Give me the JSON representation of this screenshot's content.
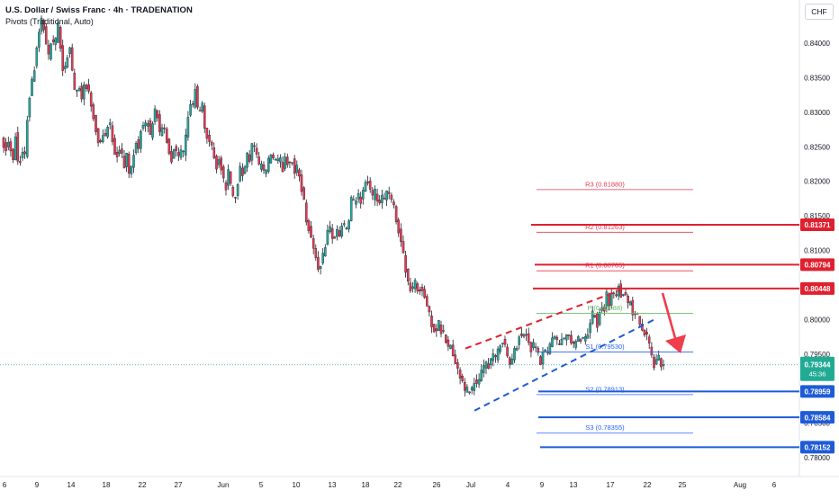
{
  "header": {
    "title": "U.S. Dollar / Swiss Franc · 4h · TRADENATION",
    "indicator": "Pivots (Traditional, Auto)"
  },
  "currency_button": "CHF",
  "colors": {
    "up": "#26a69a",
    "down": "#e53950",
    "red_line": "#e0202f",
    "blue_line": "#1e5bd8",
    "pivot_green": "#6abf6a",
    "arrow": "#ef3d4c",
    "price_badge": "#22ab94"
  },
  "chart_data": {
    "type": "candlestick",
    "ylim": [
      0.7795,
      0.8455
    ],
    "y_ticks": [
      "0.84000",
      "0.83500",
      "0.83000",
      "0.82500",
      "0.82000",
      "0.81500",
      "0.81000",
      "0.80500",
      "0.80000",
      "0.79500",
      "0.79000",
      "0.78500",
      "0.78000"
    ],
    "x_ticks": [
      "6",
      "9",
      "14",
      "18",
      "22",
      "27",
      "Jun",
      "5",
      "10",
      "13",
      "18",
      "22",
      "26",
      "Jul",
      "4",
      "9",
      "13",
      "17",
      "22",
      "25",
      "Aug",
      "6"
    ],
    "price_path": [
      [
        0.8255,
        0.8248,
        0.8262,
        0.8225,
        0.8272,
        0.8215,
        0.8248,
        0.823,
        0.83,
        0.8338,
        0.8356,
        0.8395,
        0.8422,
        0.844,
        0.84,
        0.8378,
        0.8412,
        0.8388,
        0.8428,
        0.8396,
        0.8352,
        0.8378,
        0.8398
      ],
      [
        0.8352,
        0.8322,
        0.8346,
        0.8318,
        0.8345,
        0.8336,
        0.8315,
        0.8294,
        0.827,
        0.825,
        0.8272,
        0.8265,
        0.8288,
        0.827,
        0.8242,
        0.8238,
        0.8255,
        0.8215,
        0.8238,
        0.8205,
        0.8232,
        0.8262,
        0.8248
      ],
      [
        0.8285,
        0.8274,
        0.829,
        0.8262,
        0.83,
        0.8308,
        0.8265,
        0.8282,
        0.827,
        0.8245,
        0.8232,
        0.8255,
        0.823,
        0.8242,
        0.8238,
        0.8272,
        0.8315,
        0.8305,
        0.834,
        0.8285,
        0.832,
        0.8278,
        0.8262
      ],
      [
        0.8255,
        0.8238,
        0.8222,
        0.8238,
        0.8205,
        0.819,
        0.8215,
        0.8182,
        0.817,
        0.8198,
        0.8225,
        0.8205,
        0.8238,
        0.8232,
        0.8255,
        0.8245,
        0.8218,
        0.8225,
        0.8208,
        0.8222,
        0.824,
        0.8232,
        0.8226
      ],
      [
        0.8232,
        0.8218,
        0.824,
        0.8222,
        0.8237,
        0.8212,
        0.822,
        0.8198,
        0.8175,
        0.8142,
        0.813,
        0.8108,
        0.809,
        0.8072,
        0.8085,
        0.8102,
        0.8125,
        0.8135,
        0.8112,
        0.8128,
        0.8122,
        0.814,
        0.8128
      ],
      [
        0.814,
        0.8175,
        0.8165,
        0.8182,
        0.8172,
        0.819,
        0.8205,
        0.819,
        0.8175,
        0.8185,
        0.8165,
        0.8175,
        0.8172,
        0.8188,
        0.8172,
        0.8165,
        0.814,
        0.8125,
        0.81,
        0.8075,
        0.805,
        0.804,
        0.8055
      ],
      [
        0.8042,
        0.8048,
        0.8038,
        0.8022,
        0.8005,
        0.799,
        0.7982,
        0.7995,
        0.798,
        0.7978,
        0.7958,
        0.7962,
        0.7945,
        0.793,
        0.792,
        0.7908,
        0.789,
        0.7902,
        0.7895,
        0.7914,
        0.7902,
        0.7918,
        0.793
      ],
      [
        0.7938,
        0.7932,
        0.7952,
        0.7942,
        0.7955,
        0.7975,
        0.7965,
        0.7945,
        0.7932,
        0.795,
        0.7962,
        0.798,
        0.7975,
        0.7982,
        0.7968,
        0.7955,
        0.7965,
        0.795,
        0.7935,
        0.7958,
        0.7945,
        0.7958,
        0.7974
      ],
      [
        0.7972,
        0.796,
        0.7975,
        0.7968,
        0.798,
        0.7972,
        0.796,
        0.7968,
        0.7975,
        0.7968,
        0.7972,
        0.7985,
        0.8005,
        0.8012,
        0.7992,
        0.8022,
        0.801,
        0.8038,
        0.802,
        0.8045,
        0.8028,
        0.8052,
        0.8032
      ],
      [
        0.8045,
        0.8018,
        0.8028,
        0.8005,
        0.8012,
        0.7995,
        0.7985,
        0.7978,
        0.7968,
        0.7945,
        0.7932,
        0.7948,
        0.7935,
        0.7934
      ]
    ]
  },
  "pivots": [
    {
      "label": "R3 (0.81880)",
      "value": 0.8188,
      "color": "#e53950"
    },
    {
      "label": "R2 (0.81263)",
      "value": 0.81263,
      "color": "#e53950"
    },
    {
      "label": "R1 (0.80705)",
      "value": 0.80705,
      "color": "#e53950"
    },
    {
      "label": "P (0.80088)",
      "value": 0.80088,
      "color": "#6abf6a"
    },
    {
      "label": "S1 (0.79530)",
      "value": 0.7953,
      "color": "#2962ff"
    },
    {
      "label": "S2 (0.78913)",
      "value": 0.78913,
      "color": "#2962ff"
    },
    {
      "label": "S3 (0.78355)",
      "value": 0.78355,
      "color": "#2962ff"
    }
  ],
  "levels": [
    {
      "label": "0.81371",
      "value": 0.81371,
      "color": "#e0202f"
    },
    {
      "label": "0.80794",
      "value": 0.80794,
      "color": "#e0202f"
    },
    {
      "label": "0.80448",
      "value": 0.80448,
      "color": "#e0202f"
    },
    {
      "label": "0.78959",
      "value": 0.78959,
      "color": "#1e5bd8"
    },
    {
      "label": "0.78584",
      "value": 0.78584,
      "color": "#1e5bd8"
    },
    {
      "label": "0.78152",
      "value": 0.78152,
      "color": "#1e5bd8"
    }
  ],
  "channel": {
    "upper": [
      [
        0.7958,
        0.8042
      ]
    ],
    "lower": [
      [
        0.7868,
        0.8
      ]
    ]
  },
  "current_price": {
    "value": 0.79344,
    "price": "0.79344",
    "countdown": "45:36"
  }
}
